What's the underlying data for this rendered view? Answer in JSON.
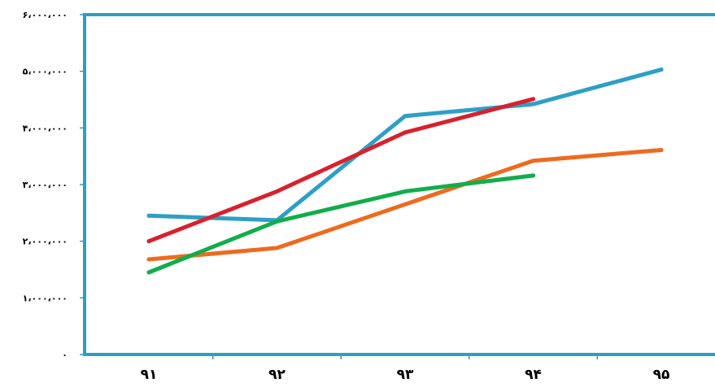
{
  "chart_data": {
    "type": "line",
    "categories": [
      "۹۱",
      "۹۲",
      "۹۳",
      "۹۴",
      "۹۵"
    ],
    "ylim": [
      0,
      6000000
    ],
    "y_ticks": [
      0,
      1000000,
      2000000,
      3000000,
      4000000,
      5000000,
      6000000
    ],
    "y_tick_labels": [
      "۰",
      "۱،۰۰۰،۰۰۰",
      "۲،۰۰۰،۰۰۰",
      "۳،۰۰۰،۰۰۰",
      "۴،۰۰۰،۰۰۰",
      "۵،۰۰۰،۰۰۰",
      "۶،۰۰۰،۰۰۰"
    ],
    "grid": false,
    "legend": "none",
    "axis_color": "#2e9fbf",
    "series": [
      {
        "color": "#2e9fc6",
        "values": [
          2450000,
          2370000,
          4210000,
          4420000,
          5030000
        ]
      },
      {
        "color": "#ee6a1f",
        "values": [
          1680000,
          1880000,
          null,
          3420000,
          3610000
        ]
      },
      {
        "color": "#d8212e",
        "values": [
          2000000,
          2880000,
          3920000,
          4510000,
          null
        ]
      },
      {
        "color": "#12ad4b",
        "values": [
          1450000,
          2350000,
          2880000,
          3160000,
          null
        ]
      }
    ]
  }
}
